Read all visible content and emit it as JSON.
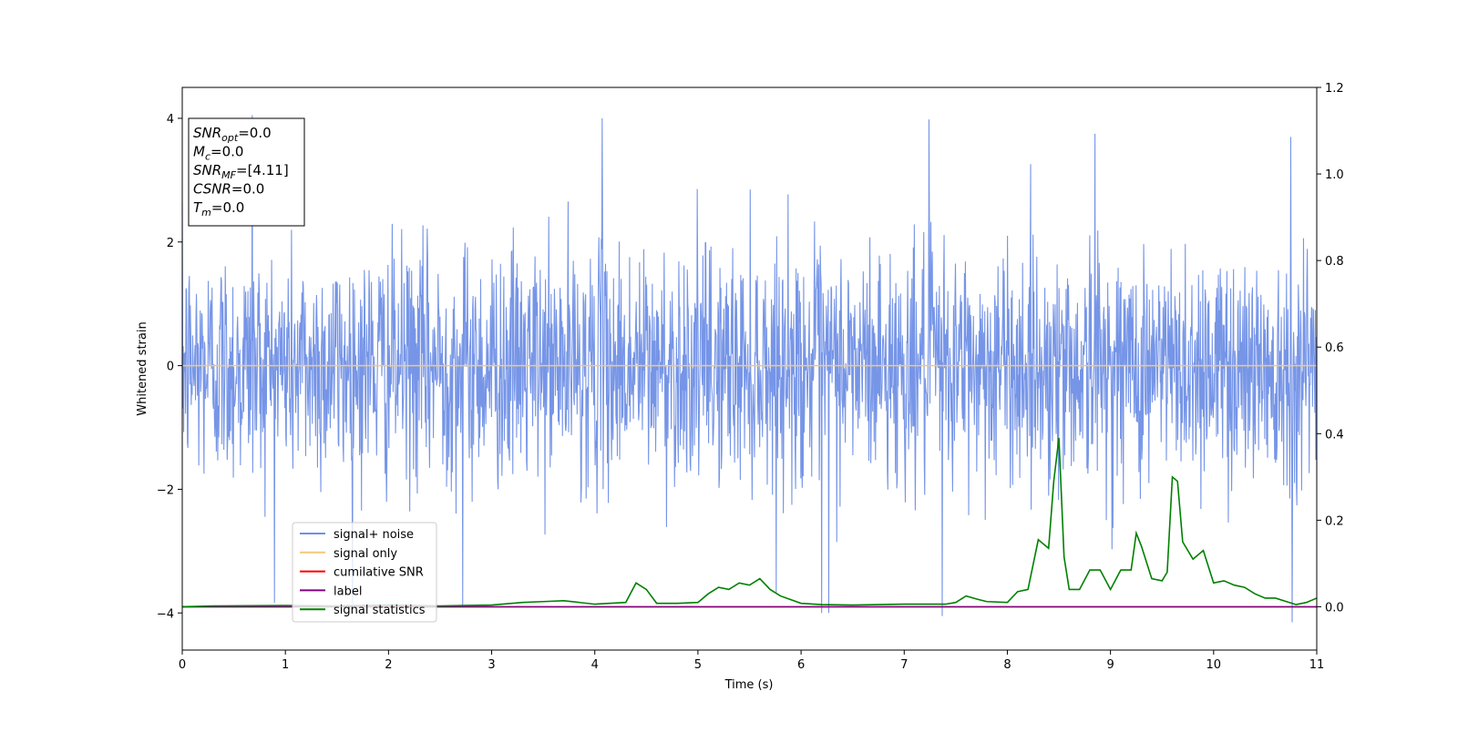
{
  "chart_data": {
    "type": "line",
    "xlabel": "Time (s)",
    "ylabel": "Whitened strain",
    "xlim": [
      0,
      11
    ],
    "ylim_left": [
      -4.6,
      4.5
    ],
    "ylim_right": [
      -0.1,
      1.2
    ],
    "x_ticks": [
      "0",
      "1",
      "2",
      "3",
      "4",
      "5",
      "6",
      "7",
      "8",
      "9",
      "10",
      "11"
    ],
    "y_ticks_left": [
      "4",
      "2",
      "0",
      "−2",
      "−4"
    ],
    "y_ticks_left_values": [
      4,
      2,
      0,
      -2,
      -4
    ],
    "y_ticks_right": [
      "1.2",
      "1.0",
      "0.8",
      "0.6",
      "0.4",
      "0.2",
      "0.0"
    ],
    "y_ticks_right_values": [
      1.2,
      1.0,
      0.8,
      0.6,
      0.4,
      0.2,
      0.0
    ],
    "legend_position": "lower-left",
    "series": [
      {
        "name": "signal+ noise",
        "color": "#6f8fe6",
        "axis": "left",
        "note": "dense noise, roughly ±2 sigma, spikes up to about 4.05 and down to about -4.15",
        "spikes": [
          {
            "x": 0.68,
            "y": 4.05
          },
          {
            "x": 4.07,
            "y": 4.0
          },
          {
            "x": 6.2,
            "y": -4.0
          },
          {
            "x": 6.27,
            "y": -4.0
          },
          {
            "x": 7.37,
            "y": -4.05
          },
          {
            "x": 10.76,
            "y": -4.15
          },
          {
            "x": 2.72,
            "y": -3.9
          },
          {
            "x": 7.24,
            "y": 3.98
          },
          {
            "x": 10.75,
            "y": 3.7
          },
          {
            "x": 8.85,
            "y": 3.75
          }
        ]
      },
      {
        "name": "signal only",
        "color": "#f5c77a",
        "axis": "left",
        "x": [
          0,
          11
        ],
        "y": [
          0,
          0
        ]
      },
      {
        "name": "cumilative SNR",
        "color": "#ff0000",
        "axis": "right",
        "x": [
          0,
          11
        ],
        "y": [
          0,
          0
        ]
      },
      {
        "name": "label",
        "color": "#800080",
        "axis": "right",
        "x": [
          0,
          11
        ],
        "y": [
          0,
          0
        ]
      },
      {
        "name": "signal statistics",
        "color": "#008000",
        "axis": "right",
        "x": [
          0,
          0.3,
          1.0,
          1.5,
          2.0,
          2.5,
          3.0,
          3.3,
          3.5,
          3.7,
          4.0,
          4.3,
          4.4,
          4.5,
          4.6,
          4.8,
          5.0,
          5.1,
          5.2,
          5.3,
          5.4,
          5.5,
          5.6,
          5.7,
          5.8,
          6.0,
          6.2,
          6.5,
          7.0,
          7.4,
          7.5,
          7.6,
          7.7,
          7.8,
          8.0,
          8.1,
          8.2,
          8.3,
          8.4,
          8.45,
          8.5,
          8.55,
          8.6,
          8.7,
          8.8,
          8.9,
          9.0,
          9.1,
          9.2,
          9.25,
          9.3,
          9.4,
          9.5,
          9.55,
          9.6,
          9.65,
          9.7,
          9.8,
          9.9,
          10.0,
          10.1,
          10.2,
          10.3,
          10.4,
          10.5,
          10.6,
          10.8,
          10.9,
          11.0
        ],
        "y": [
          0.0,
          0.002,
          0.003,
          0.002,
          0.004,
          0.002,
          0.004,
          0.01,
          0.012,
          0.014,
          0.006,
          0.01,
          0.055,
          0.04,
          0.008,
          0.008,
          0.01,
          0.03,
          0.045,
          0.04,
          0.055,
          0.05,
          0.065,
          0.04,
          0.025,
          0.008,
          0.005,
          0.004,
          0.006,
          0.006,
          0.01,
          0.025,
          0.018,
          0.012,
          0.01,
          0.035,
          0.04,
          0.155,
          0.135,
          0.29,
          0.39,
          0.115,
          0.04,
          0.04,
          0.085,
          0.085,
          0.04,
          0.085,
          0.085,
          0.17,
          0.14,
          0.065,
          0.06,
          0.08,
          0.3,
          0.29,
          0.15,
          0.11,
          0.13,
          0.055,
          0.06,
          0.05,
          0.045,
          0.03,
          0.02,
          0.02,
          0.005,
          0.01,
          0.02
        ]
      }
    ],
    "textbox": [
      {
        "base": "SNR",
        "sub": "opt",
        "value": "=0.0"
      },
      {
        "base": "M",
        "sub": "c",
        "value": "=0.0"
      },
      {
        "base": "SNR",
        "sub": "MF",
        "value": "=[4.11]"
      },
      {
        "base": "CSNR",
        "sub": "",
        "value": "=0.0"
      },
      {
        "base": "T",
        "sub": "m",
        "value": "=0.0"
      }
    ]
  }
}
